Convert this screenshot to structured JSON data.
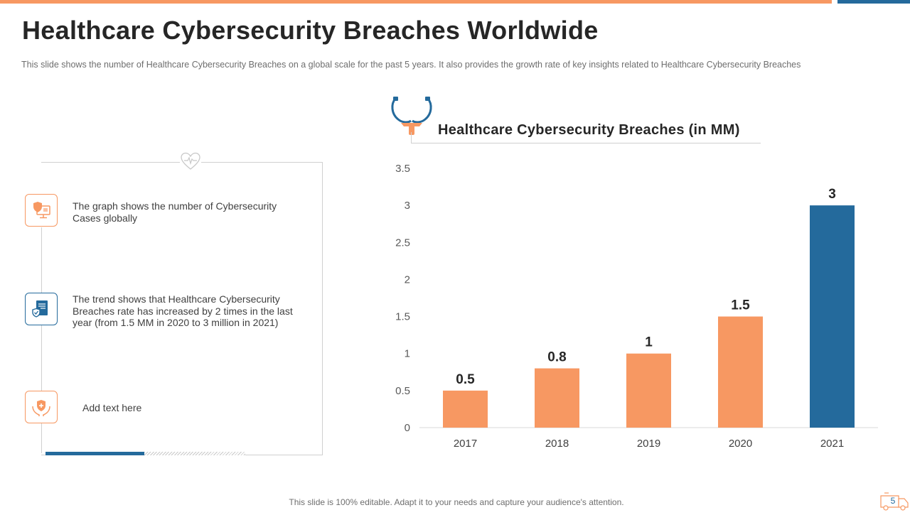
{
  "slide": {
    "title": "Healthcare Cybersecurity Breaches Worldwide",
    "subtitle": "This slide shows the number of Healthcare Cybersecurity Breaches on a global scale for the past 5 years. It also provides the growth rate of key insights related to Healthcare Cybersecurity Breaches",
    "footer": "This slide is 100% editable. Adapt it to your needs and capture your audience's attention.",
    "page_number": "5"
  },
  "insights": [
    {
      "icon": "cyber-shield-monitor-icon",
      "text": "The graph shows the number of Cybersecurity Cases globally"
    },
    {
      "icon": "secure-document-icon",
      "text": "The trend shows that Healthcare Cybersecurity Breaches rate has increased by 2 times in the last year (from 1.5 MM in 2020 to 3 million in 2021)"
    },
    {
      "icon": "hands-shield-icon",
      "text": "Add text here"
    }
  ],
  "colors": {
    "accent_orange": "#f79862",
    "accent_blue": "#246a9c",
    "text_dark": "#262626",
    "text_muted": "#6e6e6e"
  },
  "chart_data": {
    "type": "bar",
    "title": "Healthcare Cybersecurity Breaches (in MM)",
    "categories": [
      "2017",
      "2018",
      "2019",
      "2020",
      "2021"
    ],
    "values": [
      0.5,
      0.8,
      1,
      1.5,
      3
    ],
    "data_labels": [
      "0.5",
      "0.8",
      "1",
      "1.5",
      "3"
    ],
    "highlight_index": 4,
    "bar_colors": [
      "#f79862",
      "#f79862",
      "#f79862",
      "#f79862",
      "#246a9c"
    ],
    "ylim": [
      0,
      3.5
    ],
    "yticks": [
      0,
      0.5,
      1,
      1.5,
      2,
      2.5,
      3,
      3.5
    ],
    "ytick_labels": [
      "0",
      "0.5",
      "1",
      "1.5",
      "2",
      "2.5",
      "3",
      "3.5"
    ],
    "xlabel": "",
    "ylabel": "",
    "grid": false,
    "legend": "none"
  }
}
